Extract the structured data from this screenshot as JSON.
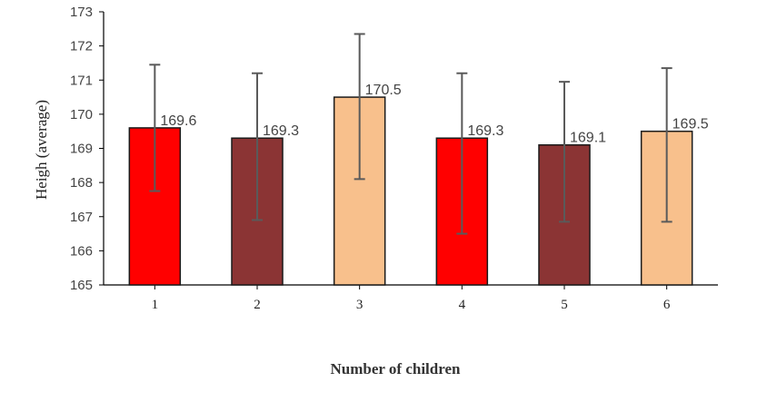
{
  "chart_data": {
    "type": "bar",
    "xlabel": "Number of children",
    "ylabel": "Heigh (average)",
    "categories": [
      "1",
      "2",
      "3",
      "4",
      "5",
      "6"
    ],
    "values": [
      169.6,
      169.3,
      170.5,
      169.3,
      169.1,
      169.5
    ],
    "data_labels": [
      "169.6",
      "169.3",
      "170.5",
      "169.3",
      "169.1",
      "169.5"
    ],
    "error_high": [
      171.45,
      171.2,
      172.35,
      171.2,
      170.95,
      171.35
    ],
    "error_low": [
      167.75,
      166.9,
      168.1,
      166.5,
      166.85,
      166.85
    ],
    "bar_colors": [
      "#ff0000",
      "#8b3434",
      "#f8c08c",
      "#ff0000",
      "#8b3434",
      "#f8c08c"
    ],
    "ylim": [
      165,
      173
    ],
    "yticks": [
      "165",
      "166",
      "167",
      "168",
      "169",
      "170",
      "171",
      "172",
      "173"
    ],
    "grid": false,
    "legend": "none"
  }
}
